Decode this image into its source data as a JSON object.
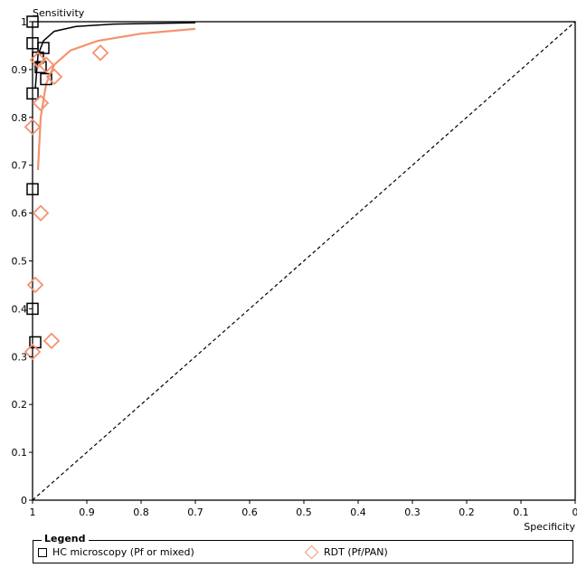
{
  "chart_data": {
    "type": "scatter",
    "title": "",
    "xlabel": "Specificity",
    "ylabel": "Sensitivity",
    "xlim": [
      1,
      0
    ],
    "ylim": [
      0,
      1
    ],
    "x_reversed": true,
    "x_ticks": [
      "1",
      "0.9",
      "0.8",
      "0.7",
      "0.6",
      "0.5",
      "0.4",
      "0.3",
      "0.2",
      "0.1",
      "0"
    ],
    "y_ticks": [
      "0",
      "0.1",
      "0.2",
      "0.3",
      "0.4",
      "0.5",
      "0.6",
      "0.7",
      "0.8",
      "0.9",
      "1"
    ],
    "grid": false,
    "reference_line": "diagonal-dashed",
    "legend": {
      "title": "Legend",
      "placement": "bottom"
    },
    "series": [
      {
        "name": "HC microscopy (Pf or mixed)",
        "marker": "square",
        "color": "#000000",
        "points": [
          {
            "spec": 1.0,
            "sens": 1.0
          },
          {
            "spec": 1.0,
            "sens": 0.955
          },
          {
            "spec": 0.98,
            "sens": 0.945
          },
          {
            "spec": 0.99,
            "sens": 0.925
          },
          {
            "spec": 0.985,
            "sens": 0.905
          },
          {
            "spec": 0.975,
            "sens": 0.88
          },
          {
            "spec": 1.0,
            "sens": 0.85
          },
          {
            "spec": 1.0,
            "sens": 0.65
          },
          {
            "spec": 1.0,
            "sens": 0.4
          },
          {
            "spec": 0.995,
            "sens": 0.33
          }
        ],
        "curve": [
          {
            "spec": 0.995,
            "sens": 0.86
          },
          {
            "spec": 0.99,
            "sens": 0.93
          },
          {
            "spec": 0.98,
            "sens": 0.96
          },
          {
            "spec": 0.96,
            "sens": 0.98
          },
          {
            "spec": 0.92,
            "sens": 0.99
          },
          {
            "spec": 0.85,
            "sens": 0.995
          },
          {
            "spec": 0.7,
            "sens": 0.998
          }
        ]
      },
      {
        "name": "RDT (Pf/PAN)",
        "marker": "diamond",
        "color": "#f4926f",
        "points": [
          {
            "spec": 0.99,
            "sens": 0.92
          },
          {
            "spec": 0.975,
            "sens": 0.91
          },
          {
            "spec": 0.96,
            "sens": 0.885
          },
          {
            "spec": 0.875,
            "sens": 0.935
          },
          {
            "spec": 0.985,
            "sens": 0.83
          },
          {
            "spec": 1.0,
            "sens": 0.78
          },
          {
            "spec": 0.985,
            "sens": 0.6
          },
          {
            "spec": 0.995,
            "sens": 0.45
          },
          {
            "spec": 0.965,
            "sens": 0.333
          },
          {
            "spec": 1.0,
            "sens": 0.31
          }
        ],
        "curve": [
          {
            "spec": 0.99,
            "sens": 0.69
          },
          {
            "spec": 0.985,
            "sens": 0.8
          },
          {
            "spec": 0.975,
            "sens": 0.87
          },
          {
            "spec": 0.96,
            "sens": 0.91
          },
          {
            "spec": 0.93,
            "sens": 0.94
          },
          {
            "spec": 0.88,
            "sens": 0.96
          },
          {
            "spec": 0.8,
            "sens": 0.975
          },
          {
            "spec": 0.7,
            "sens": 0.985
          }
        ]
      }
    ]
  }
}
